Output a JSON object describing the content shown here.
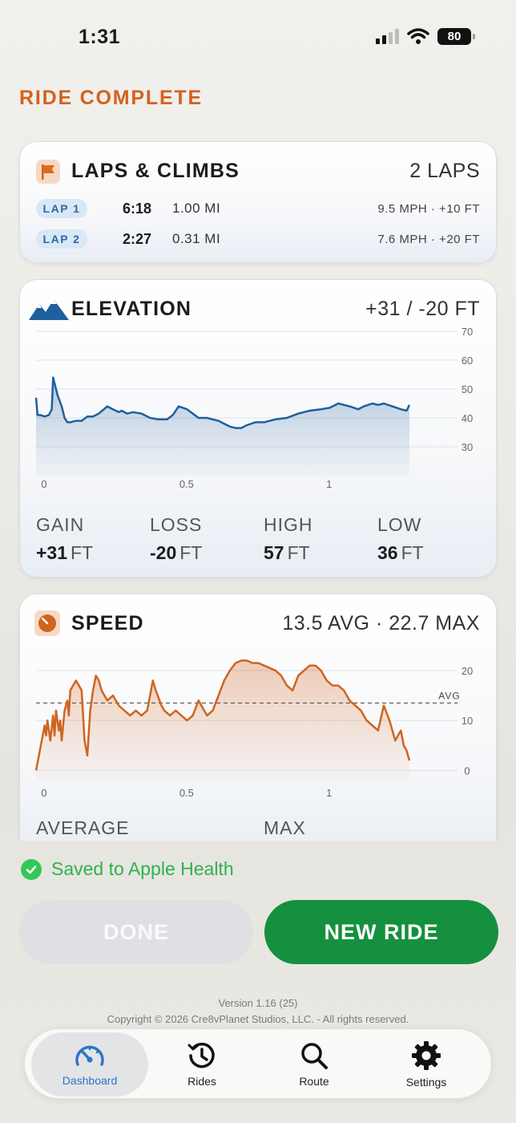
{
  "status_bar": {
    "time": "1:31",
    "battery": "80"
  },
  "header": {
    "title": "RIDE COMPLETE"
  },
  "laps": {
    "title": "LAPS & CLIMBS",
    "count": "2 LAPS",
    "items": [
      {
        "label": "LAP 1",
        "time": "6:18",
        "distance": "1.00 MI",
        "meta": "9.5 MPH · +10 FT"
      },
      {
        "label": "LAP 2",
        "time": "2:27",
        "distance": "0.31 MI",
        "meta": "7.6 MPH · +20 FT"
      }
    ]
  },
  "elevation": {
    "title": "ELEVATION",
    "summary": "+31 / -20 FT",
    "stats": [
      {
        "label": "GAIN",
        "value": "+31",
        "unit": "FT"
      },
      {
        "label": "LOSS",
        "value": "-20",
        "unit": "FT"
      },
      {
        "label": "HIGH",
        "value": "57",
        "unit": "FT"
      },
      {
        "label": "LOW",
        "value": "36",
        "unit": "FT"
      }
    ]
  },
  "speed": {
    "title": "SPEED",
    "summary": "13.5 AVG · 22.7 MAX",
    "avg_label": "AVG",
    "stats": [
      {
        "label": "AVERAGE"
      },
      {
        "label": "MAX"
      }
    ]
  },
  "chart_data": [
    {
      "type": "area",
      "xlim": [
        0,
        1.31
      ],
      "ylim": [
        20,
        70
      ],
      "x_ticks": [
        "0",
        "0.5",
        "1"
      ],
      "y_ticks": [
        "70",
        "60",
        "50",
        "40",
        "30"
      ],
      "color": "#1f5f9e",
      "series": [
        {
          "x": [
            0,
            0.005,
            0.015,
            0.03,
            0.045,
            0.055,
            0.06,
            0.065,
            0.075,
            0.09,
            0.1,
            0.11,
            0.12,
            0.14,
            0.16,
            0.18,
            0.2,
            0.22,
            0.25,
            0.27,
            0.29,
            0.3,
            0.32,
            0.34,
            0.37,
            0.4,
            0.43,
            0.46,
            0.48,
            0.5,
            0.53,
            0.57,
            0.6,
            0.62,
            0.64,
            0.66,
            0.68,
            0.7,
            0.72,
            0.74,
            0.77,
            0.8,
            0.82,
            0.84,
            0.88,
            0.92,
            0.96,
            1.0,
            1.03,
            1.06,
            1.08,
            1.1,
            1.13,
            1.15,
            1.18,
            1.2,
            1.22,
            1.25,
            1.28,
            1.3,
            1.31
          ],
          "y": [
            47,
            41,
            41,
            40.5,
            41,
            43,
            54,
            52,
            48,
            44,
            40,
            38.5,
            38.5,
            39,
            39,
            40.5,
            40.5,
            41.5,
            44,
            43,
            42,
            42.5,
            41.5,
            42,
            41.5,
            40,
            39.5,
            39.5,
            41,
            44,
            43,
            40,
            40,
            39.5,
            39,
            38,
            37,
            36.5,
            36.5,
            37.5,
            38.5,
            38.5,
            39,
            39.5,
            40,
            41.5,
            42.5,
            43,
            43.5,
            45,
            44.5,
            44,
            43,
            44,
            45,
            44.5,
            45,
            44,
            43,
            42.5,
            44.5
          ]
        }
      ]
    },
    {
      "type": "area",
      "xlim": [
        0,
        1.31
      ],
      "ylim": [
        -2,
        24
      ],
      "x_ticks": [
        "0",
        "0.5",
        "1"
      ],
      "y_ticks": [
        "20",
        "10",
        "0"
      ],
      "avg": 13.5,
      "color": "#cf6420",
      "series": [
        {
          "x": [
            0,
            0.01,
            0.02,
            0.03,
            0.035,
            0.04,
            0.05,
            0.06,
            0.065,
            0.07,
            0.08,
            0.085,
            0.09,
            0.1,
            0.11,
            0.115,
            0.12,
            0.13,
            0.14,
            0.15,
            0.16,
            0.17,
            0.18,
            0.19,
            0.2,
            0.21,
            0.22,
            0.23,
            0.24,
            0.25,
            0.27,
            0.29,
            0.31,
            0.33,
            0.35,
            0.37,
            0.39,
            0.41,
            0.42,
            0.44,
            0.45,
            0.47,
            0.49,
            0.51,
            0.53,
            0.55,
            0.57,
            0.58,
            0.6,
            0.62,
            0.64,
            0.66,
            0.68,
            0.7,
            0.72,
            0.74,
            0.76,
            0.78,
            0.8,
            0.82,
            0.84,
            0.86,
            0.88,
            0.9,
            0.92,
            0.94,
            0.96,
            0.98,
            1.0,
            1.02,
            1.04,
            1.06,
            1.08,
            1.1,
            1.12,
            1.14,
            1.16,
            1.18,
            1.2,
            1.22,
            1.24,
            1.25,
            1.26,
            1.27,
            1.28,
            1.29,
            1.3,
            1.31
          ],
          "y": [
            0,
            3,
            6,
            9,
            7,
            10,
            6,
            11,
            7,
            12,
            8,
            10,
            6,
            12,
            14,
            11,
            16,
            17,
            18,
            17,
            16,
            6,
            3,
            12,
            16,
            19,
            18,
            16,
            15,
            14,
            15,
            13,
            12,
            11,
            12,
            11,
            12,
            18,
            16,
            13,
            12,
            11,
            12,
            11,
            10,
            11,
            14,
            13,
            11,
            12,
            15,
            18,
            20,
            21.5,
            22,
            22,
            21.5,
            21.5,
            21,
            20.5,
            20,
            19,
            17,
            16,
            19,
            20,
            21,
            21,
            20,
            18,
            17,
            17,
            16,
            14,
            13,
            12,
            10,
            9,
            8,
            13,
            10,
            8,
            6,
            7,
            8,
            5,
            4,
            2
          ]
        }
      ]
    }
  ],
  "health": {
    "text": "Saved to Apple Health"
  },
  "actions": {
    "done": "DONE",
    "new_ride": "NEW RIDE"
  },
  "footer": {
    "version": "Version 1.16 (25)",
    "copyright": "Copyright © 2026 Cre8vPlanet Studios, LLC. - All rights reserved."
  },
  "tabs": [
    {
      "label": "Dashboard",
      "icon": "speedometer-icon"
    },
    {
      "label": "Rides",
      "icon": "history-clock-icon"
    },
    {
      "label": "Route",
      "icon": "magnifier-icon"
    },
    {
      "label": "Settings",
      "icon": "gear-icon"
    }
  ]
}
